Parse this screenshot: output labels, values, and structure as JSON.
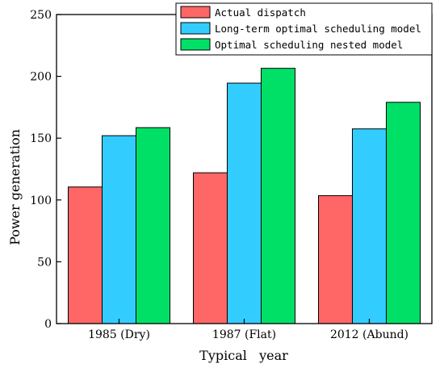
{
  "chart_data": {
    "type": "bar",
    "title": "",
    "xlabel": "Typical   year",
    "ylabel": "Power generation",
    "ylim": [
      0,
      250
    ],
    "yticks": [
      0,
      50,
      100,
      150,
      200,
      250
    ],
    "categories": [
      "1985 (Dry)",
      "1987 (Flat)",
      "2012 (Abund)"
    ],
    "series": [
      {
        "name": "Actual dispatch",
        "color": "#ff6666",
        "values": [
          110.5,
          122,
          103.5
        ]
      },
      {
        "name": "Long-term optimal scheduling model",
        "color": "#33ccff",
        "values": [
          152,
          194.5,
          157.5
        ]
      },
      {
        "name": "Optimal scheduling nested model",
        "color": "#00e066",
        "values": [
          158.5,
          206.5,
          179
        ]
      }
    ],
    "legend_position": "top-right",
    "grid": false
  }
}
